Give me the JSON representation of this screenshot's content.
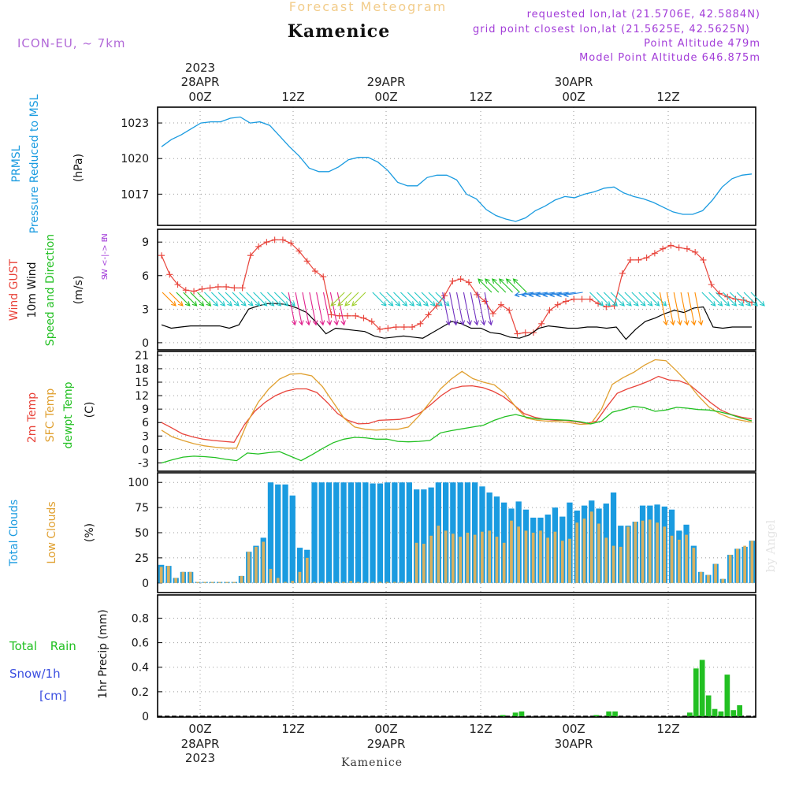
{
  "header": {
    "title_faded": "Forecast Meteogram",
    "location": "Kamenice",
    "model": "ICON-EU, ~ 7km",
    "requested": "requested lon,lat (21.5706E, 42.5884N)",
    "grid_point": "grid point closest lon,lat (21.5625E, 42.5625N)",
    "point_alt": "Point Altitude 479m",
    "model_alt": "Model Point Altitude 646.875m",
    "footer_name": "Kamenice",
    "watermark": "by Angel"
  },
  "time_axis": {
    "ticks": [
      "00Z",
      "12Z",
      "00Z",
      "12Z",
      "00Z",
      "12Z"
    ],
    "dates": [
      "28APR",
      "29APR",
      "30APR"
    ],
    "year": "2023"
  },
  "colors": {
    "blue": "#1a9be0",
    "red": "#e8433a",
    "orange": "#e0a030",
    "green": "#22c022",
    "purple": "#a23cd8",
    "black": "#000000",
    "gold": "#d8b060"
  },
  "chart_data": [
    {
      "type": "line",
      "name": "pressure",
      "ylabel_lines": [
        "PRMSL",
        "Pressure Reduced to MSL"
      ],
      "unit": "(hPa)",
      "yticks": [
        "1017",
        "1020",
        "1023"
      ],
      "ylim": [
        1014.5,
        1024.2
      ],
      "series": [
        {
          "name": "PRMSL",
          "color": "#1a9be0",
          "values": [
            1021.0,
            1021.6,
            1022.0,
            1022.5,
            1023.0,
            1023.1,
            1023.1,
            1023.4,
            1023.5,
            1023.0,
            1023.1,
            1022.8,
            1021.9,
            1021.0,
            1020.2,
            1019.2,
            1018.9,
            1018.9,
            1019.3,
            1019.9,
            1020.1,
            1020.1,
            1019.7,
            1019.0,
            1018.0,
            1017.7,
            1017.7,
            1018.4,
            1018.6,
            1018.6,
            1018.2,
            1017.0,
            1016.6,
            1015.7,
            1015.2,
            1014.9,
            1014.7,
            1015.0,
            1015.6,
            1016.0,
            1016.5,
            1016.8,
            1016.7,
            1017.0,
            1017.2,
            1017.5,
            1017.6,
            1017.1,
            1016.8,
            1016.6,
            1016.3,
            1015.9,
            1015.5,
            1015.3,
            1015.3,
            1015.6,
            1016.5,
            1017.6,
            1018.3,
            1018.6,
            1018.7
          ]
        }
      ]
    },
    {
      "type": "line",
      "name": "wind",
      "ylabel_lines": [
        "Wind GUST",
        "10m Wind",
        "Speed and Direction"
      ],
      "unit": "(m/s)",
      "yticks": [
        "0",
        "3",
        "6",
        "9"
      ],
      "ylim": [
        -0.5,
        10.0
      ],
      "compass": [
        "N",
        "W <-|-> E",
        "S"
      ],
      "series": [
        {
          "name": "Wind GUST",
          "color": "#e8433a",
          "values": [
            7.8,
            6.1,
            5.2,
            4.7,
            4.6,
            4.8,
            4.9,
            5.0,
            5.0,
            4.9,
            4.9,
            7.8,
            8.6,
            9.0,
            9.2,
            9.2,
            8.9,
            8.2,
            7.3,
            6.4,
            5.9,
            2.5,
            2.4,
            2.4,
            2.4,
            2.2,
            1.9,
            1.2,
            1.3,
            1.4,
            1.4,
            1.4,
            1.7,
            2.5,
            3.3,
            4.2,
            5.5,
            5.7,
            5.4,
            4.3,
            3.7,
            2.6,
            3.4,
            2.9,
            0.8,
            0.9,
            0.9,
            1.7,
            2.9,
            3.4,
            3.7,
            3.9,
            3.9,
            3.9,
            3.5,
            3.2,
            3.3,
            6.2,
            7.4,
            7.4,
            7.6,
            8.0,
            8.4,
            8.7,
            8.5,
            8.4,
            8.1,
            7.4,
            5.2,
            4.4,
            4.1,
            3.9,
            3.8,
            3.6
          ]
        },
        {
          "name": "10m Wind",
          "color": "#000000",
          "values": [
            1.6,
            1.3,
            1.4,
            1.5,
            1.5,
            1.5,
            1.5,
            1.3,
            1.6,
            3.0,
            3.3,
            3.5,
            3.5,
            3.4,
            3.1,
            2.7,
            1.8,
            0.8,
            1.3,
            1.2,
            1.1,
            1.0,
            0.6,
            0.4,
            0.5,
            0.6,
            0.5,
            0.4,
            0.9,
            1.4,
            1.9,
            1.7,
            1.3,
            1.3,
            0.9,
            0.8,
            0.5,
            0.4,
            0.7,
            1.3,
            1.5,
            1.4,
            1.3,
            1.3,
            1.4,
            1.4,
            1.3,
            1.4,
            0.3,
            1.2,
            1.9,
            2.2,
            2.6,
            2.9,
            2.7,
            3.1,
            3.2,
            1.4,
            1.3,
            1.4,
            1.4,
            1.4
          ]
        }
      ],
      "arrows": [
        {
          "dir": "down-right",
          "color": "#ff8c00",
          "count": 2
        },
        {
          "dir": "down-right",
          "color": "#20c020",
          "count": 4
        },
        {
          "dir": "down-right",
          "color": "#20c8c8",
          "count": 12
        },
        {
          "dir": "down",
          "color": "#e0208c",
          "count": 8
        },
        {
          "dir": "down-left",
          "color": "#a0d030",
          "count": 4
        },
        {
          "dir": "down-right",
          "color": "#20c8c8",
          "count": 10
        },
        {
          "dir": "down",
          "color": "#7030c0",
          "count": 7
        },
        {
          "dir": "up-left",
          "color": "#20c020",
          "count": 6
        },
        {
          "dir": "left",
          "color": "#2080e0",
          "count": 8
        },
        {
          "dir": "down-right",
          "color": "#20c8c8",
          "count": 10
        },
        {
          "dir": "down",
          "color": "#ff8c00",
          "count": 6
        },
        {
          "dir": "down-right",
          "color": "#20c8c8",
          "count": 8
        }
      ]
    },
    {
      "type": "line",
      "name": "temperature",
      "ylabel_lines": [
        "2m Temp",
        "SFC Temp",
        "dewpt Temp"
      ],
      "unit": "(C)",
      "yticks": [
        "-3",
        "0",
        "3",
        "6",
        "9",
        "12",
        "15",
        "18",
        "21"
      ],
      "ylim": [
        -4.5,
        21.5
      ],
      "series": [
        {
          "name": "2m Temp",
          "color": "#e8433a",
          "values": [
            6.0,
            4.8,
            3.5,
            2.8,
            2.3,
            2.0,
            1.8,
            1.6,
            5.5,
            8.5,
            10.5,
            12.0,
            13.0,
            13.5,
            13.5,
            12.7,
            10.5,
            8.0,
            6.5,
            5.7,
            5.8,
            6.5,
            6.6,
            6.7,
            7.2,
            8.2,
            10.0,
            12.0,
            13.5,
            14.1,
            14.2,
            13.8,
            13.0,
            11.8,
            10.0,
            8.0,
            7.2,
            6.7,
            6.5,
            6.5,
            6.2,
            5.8,
            6.3,
            9.5,
            12.5,
            13.5,
            14.3,
            15.2,
            16.3,
            15.5,
            15.3,
            14.4,
            12.5,
            10.5,
            8.8,
            7.8,
            7.2,
            6.8
          ]
        },
        {
          "name": "SFC Temp",
          "color": "#e0a030",
          "values": [
            4.3,
            2.8,
            2.0,
            1.3,
            0.8,
            0.5,
            0.3,
            0.3,
            6.0,
            10.5,
            13.5,
            15.7,
            16.8,
            16.9,
            16.4,
            14.0,
            10.5,
            7.0,
            5.0,
            4.5,
            4.3,
            4.5,
            4.5,
            5.0,
            7.5,
            10.5,
            13.5,
            15.7,
            17.4,
            15.8,
            15.0,
            14.4,
            12.5,
            9.5,
            7.0,
            6.5,
            6.3,
            6.2,
            6.0,
            5.6,
            5.7,
            9.0,
            14.5,
            16.0,
            17.2,
            18.8,
            20.0,
            19.8,
            17.5,
            15.0,
            12.0,
            9.5,
            8.0,
            7.0,
            6.5,
            6.1
          ]
        },
        {
          "name": "dewpt Temp",
          "color": "#22c022",
          "values": [
            -3.0,
            -2.3,
            -1.7,
            -1.5,
            -1.6,
            -1.8,
            -2.2,
            -2.5,
            -0.8,
            -1.0,
            -0.7,
            -0.5,
            -1.5,
            -2.5,
            -1.2,
            0.2,
            1.5,
            2.3,
            2.7,
            2.6,
            2.3,
            2.3,
            1.8,
            1.7,
            1.8,
            2.0,
            3.7,
            4.2,
            4.6,
            5.0,
            5.4,
            6.5,
            7.3,
            7.8,
            7.2,
            6.8,
            6.7,
            6.6,
            6.5,
            6.2,
            5.7,
            6.3,
            8.3,
            8.9,
            9.6,
            9.3,
            8.5,
            8.8,
            9.4,
            9.2,
            8.9,
            8.8,
            8.4,
            7.8,
            7.0,
            6.4
          ]
        }
      ]
    },
    {
      "type": "bar",
      "name": "clouds",
      "ylabel_lines": [
        "Total Clouds",
        "Low Clouds"
      ],
      "unit": "(%)",
      "yticks": [
        "0",
        "25",
        "50",
        "75",
        "100"
      ],
      "ylim": [
        -8,
        108
      ],
      "series": [
        {
          "name": "Total Clouds",
          "color": "#1a9be0",
          "values": [
            18,
            17,
            5,
            11,
            11,
            1,
            1,
            1,
            1,
            1,
            1,
            7,
            31,
            37,
            45,
            100,
            98,
            98,
            87,
            35,
            33,
            100,
            100,
            100,
            100,
            100,
            100,
            100,
            100,
            99,
            99,
            100,
            100,
            100,
            100,
            93,
            93,
            95,
            100,
            100,
            100,
            100,
            100,
            100,
            96,
            90,
            86,
            80,
            74,
            81,
            73,
            65,
            65,
            68,
            75,
            66,
            80,
            72,
            77,
            82,
            74,
            79,
            90,
            57,
            57,
            61,
            77,
            77,
            78,
            76,
            73,
            52,
            58,
            37,
            11,
            8,
            19,
            4,
            28,
            34,
            36,
            42
          ]
        },
        {
          "name": "Low Clouds",
          "color": "#d8b060",
          "values": [
            16,
            17,
            5,
            11,
            11,
            1,
            1,
            1,
            1,
            1,
            1,
            7,
            31,
            36,
            41,
            14,
            5,
            1,
            2,
            11,
            25,
            1,
            1,
            1,
            1,
            1,
            2,
            1,
            1,
            1,
            1,
            1,
            1,
            1,
            1,
            40,
            39,
            47,
            57,
            52,
            49,
            46,
            50,
            48,
            51,
            52,
            46,
            40,
            62,
            56,
            52,
            50,
            52,
            45,
            51,
            42,
            44,
            60,
            64,
            71,
            59,
            45,
            37,
            36,
            56,
            61,
            62,
            63,
            60,
            56,
            47,
            43,
            48,
            35,
            11,
            8,
            19,
            4,
            28,
            34,
            37,
            42
          ]
        }
      ]
    },
    {
      "type": "bar",
      "name": "precip",
      "ylabel_lines": [
        "1hr Precip (mm)"
      ],
      "left_labels": [
        "Total Rain",
        "Snow/1h",
        "[cm]"
      ],
      "yticks": [
        "0",
        "0.2",
        "0.4",
        "0.6",
        "0.8"
      ],
      "ylim": [
        0,
        0.97
      ],
      "series": [
        {
          "name": "Total Rain",
          "color": "#22c022",
          "bars": [
            [
              55,
              0.01
            ],
            [
              57,
              0.03
            ],
            [
              58,
              0.04
            ],
            [
              70,
              0.01
            ],
            [
              72,
              0.04
            ],
            [
              73,
              0.04
            ],
            [
              85,
              0.03
            ],
            [
              86,
              0.39
            ],
            [
              87,
              0.46
            ],
            [
              88,
              0.17
            ],
            [
              89,
              0.06
            ],
            [
              90,
              0.04
            ],
            [
              91,
              0.34
            ],
            [
              92,
              0.05
            ],
            [
              93,
              0.09
            ]
          ]
        }
      ]
    }
  ]
}
